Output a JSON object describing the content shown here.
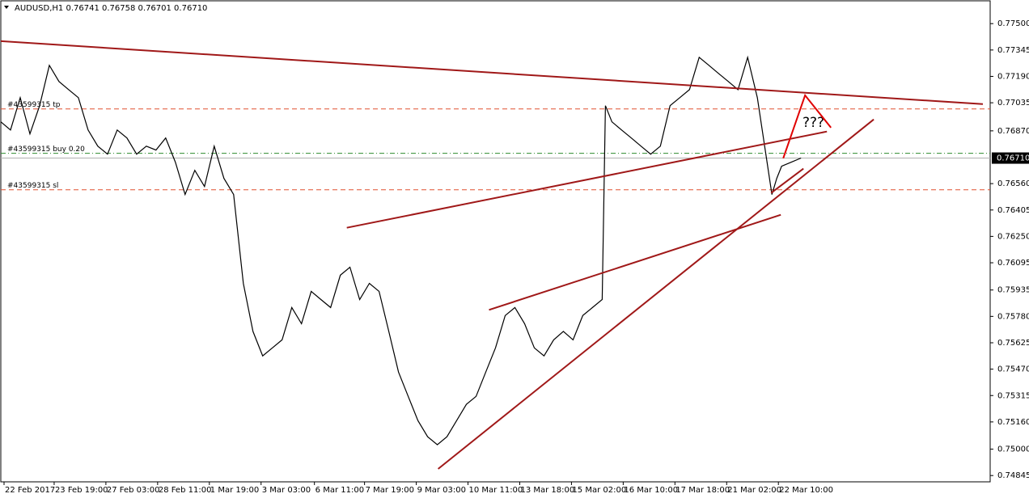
{
  "chart_data": {
    "type": "line",
    "header": "AUDUSD,H1  0.76741 0.76758 0.76701 0.76710",
    "annotation": "???",
    "xlim": [
      0,
      612
    ],
    "ylim": [
      0.74808,
      0.77634
    ],
    "xticks": [
      {
        "value": 2,
        "label": "22 Feb 2017"
      },
      {
        "value": 33,
        "label": "23 Feb 19:00"
      },
      {
        "value": 65,
        "label": "27 Feb 03:00"
      },
      {
        "value": 97,
        "label": "28 Feb 11:00"
      },
      {
        "value": 129,
        "label": "1 Mar 19:00"
      },
      {
        "value": 161,
        "label": "3 Mar 03:00"
      },
      {
        "value": 194,
        "label": "6 Mar 11:00"
      },
      {
        "value": 225,
        "label": "7 Mar 19:00"
      },
      {
        "value": 257,
        "label": "9 Mar 03:00"
      },
      {
        "value": 289,
        "label": "10 Mar 11:00"
      },
      {
        "value": 321,
        "label": "13 Mar 18:00"
      },
      {
        "value": 353,
        "label": "15 Mar 02:00"
      },
      {
        "value": 385,
        "label": "16 Mar 10:00"
      },
      {
        "value": 417,
        "label": "17 Mar 18:00"
      },
      {
        "value": 449,
        "label": "21 Mar 02:00"
      },
      {
        "value": 481,
        "label": "22 Mar 10:00"
      }
    ],
    "yticks": [
      {
        "value": 0.775,
        "label": "0.77500"
      },
      {
        "value": 0.77345,
        "label": "0.77345"
      },
      {
        "value": 0.7719,
        "label": "0.77190"
      },
      {
        "value": 0.77035,
        "label": "0.77035"
      },
      {
        "value": 0.7687,
        "label": "0.76870"
      },
      {
        "value": 0.7656,
        "label": "0.76560"
      },
      {
        "value": 0.76405,
        "label": "0.76405"
      },
      {
        "value": 0.7625,
        "label": "0.76250"
      },
      {
        "value": 0.76095,
        "label": "0.76095"
      },
      {
        "value": 0.75935,
        "label": "0.75935"
      },
      {
        "value": 0.7578,
        "label": "0.75780"
      },
      {
        "value": 0.75625,
        "label": "0.75625"
      },
      {
        "value": 0.7547,
        "label": "0.75470"
      },
      {
        "value": 0.75315,
        "label": "0.75315"
      },
      {
        "value": 0.7516,
        "label": "0.75160"
      },
      {
        "value": 0.75,
        "label": "0.75000"
      },
      {
        "value": 0.74845,
        "label": "0.74845"
      }
    ],
    "current_price": {
      "value": 0.7671,
      "label": "0.76710"
    },
    "series": [
      {
        "color": "#000000",
        "x": [
          0,
          6,
          12,
          18,
          24,
          30,
          36,
          42,
          48,
          54,
          60,
          66,
          72,
          78,
          84,
          90,
          96,
          102,
          108,
          114,
          120,
          126,
          132,
          138,
          144,
          150,
          156,
          162,
          168,
          174,
          180,
          186,
          192,
          198,
          204,
          210,
          216,
          222,
          228,
          234,
          240,
          246,
          252,
          258,
          264,
          270,
          276,
          282,
          288,
          294,
          300,
          306,
          312,
          318,
          324,
          330,
          336,
          342,
          348,
          354,
          360,
          366,
          372,
          374,
          378,
          384,
          390,
          396,
          402,
          408,
          414,
          420,
          426,
          432,
          438,
          444,
          450,
          456,
          462,
          468,
          474,
          477,
          480,
          483,
          489,
          495
        ],
        "values": [
          0.76923,
          0.76875,
          0.77065,
          0.76852,
          0.77018,
          0.77255,
          0.7716,
          0.77112,
          0.77065,
          0.76875,
          0.7678,
          0.76733,
          0.76875,
          0.76828,
          0.76733,
          0.7678,
          0.76757,
          0.76828,
          0.76686,
          0.76496,
          0.76638,
          0.76543,
          0.7678,
          0.76591,
          0.76496,
          0.75974,
          0.75692,
          0.75548,
          0.75595,
          0.75642,
          0.75832,
          0.75737,
          0.75927,
          0.75879,
          0.75832,
          0.76022,
          0.76069,
          0.75879,
          0.75974,
          0.75927,
          0.75692,
          0.75453,
          0.7531,
          0.75168,
          0.75073,
          0.75026,
          0.75073,
          0.75168,
          0.75263,
          0.7531,
          0.75453,
          0.75595,
          0.75785,
          0.75832,
          0.75737,
          0.75595,
          0.75548,
          0.75642,
          0.75692,
          0.75642,
          0.75785,
          0.75832,
          0.75879,
          0.77018,
          0.76923,
          0.76875,
          0.76828,
          0.7678,
          0.76733,
          0.7678,
          0.77018,
          0.77065,
          0.77112,
          0.77302,
          0.77255,
          0.77207,
          0.7716,
          0.77112,
          0.77302,
          0.77065,
          0.76686,
          0.76496,
          0.76591,
          0.76662,
          0.76686,
          0.7671
        ]
      }
    ],
    "orders": [
      {
        "label": "#43599315 tp",
        "value": 0.76999,
        "color": "#e05030"
      },
      {
        "label": "#43599315 buy 0.20",
        "value": 0.76738,
        "color": "#2e8b2e"
      },
      {
        "label": "#43599315 sl",
        "value": 0.76524,
        "color": "#e05030"
      }
    ],
    "trendlines": [
      {
        "color": "#a01818",
        "x": [
          0,
          607.5
        ],
        "values": [
          0.77397,
          0.77027
        ]
      },
      {
        "color": "#a01818",
        "x": [
          214,
          511
        ],
        "values": [
          0.76301,
          0.76866
        ]
      },
      {
        "color": "#a01818",
        "x": [
          302,
          482.5
        ],
        "values": [
          0.75818,
          0.76377
        ]
      },
      {
        "color": "#a01818",
        "x": [
          270.5,
          540
        ],
        "values": [
          0.74884,
          0.76937
        ]
      },
      {
        "color": "#a01818",
        "x": [
          476.5,
          496.5
        ],
        "values": [
          0.76505,
          0.76648
        ]
      },
      {
        "color": "#e00000",
        "x": [
          484,
          497.5,
          513.5
        ],
        "values": [
          0.76709,
          0.77079,
          0.76889
        ]
      }
    ]
  }
}
